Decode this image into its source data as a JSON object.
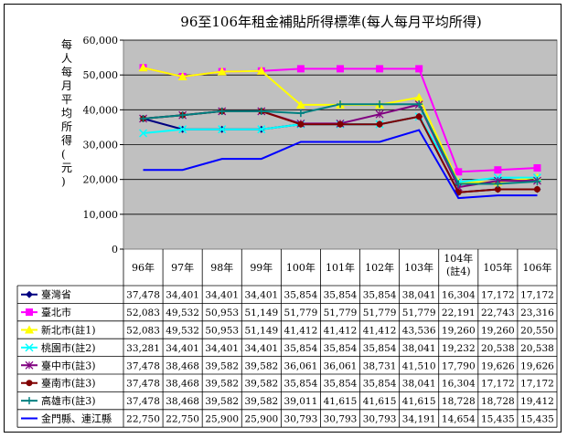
{
  "chart_data": {
    "type": "line",
    "title": "96至106年租金補貼所得標準(每人每月平均所得)",
    "ylabel": "每人每月平均所得(元)",
    "ylim": [
      0,
      60000
    ],
    "yticks": [
      "0",
      "10,000",
      "20,000",
      "30,000",
      "40,000",
      "50,000",
      "60,000"
    ],
    "grid": true,
    "legend": "table-below",
    "categories": [
      "96年",
      "97年",
      "98年",
      "99年",
      "100年",
      "101年",
      "102年",
      "103年",
      "104年(註4)",
      "105年",
      "106年"
    ],
    "category_lines": [
      [
        "96年"
      ],
      [
        "97年"
      ],
      [
        "98年"
      ],
      [
        "99年"
      ],
      [
        "100年"
      ],
      [
        "101年"
      ],
      [
        "102年"
      ],
      [
        "103年"
      ],
      [
        "104年",
        "(註4)"
      ],
      [
        "105年"
      ],
      [
        "106年"
      ]
    ],
    "series": [
      {
        "name": "臺灣省",
        "color": "#000080",
        "marker": "diamond",
        "values": [
          37478,
          34401,
          34401,
          34401,
          35854,
          35854,
          35854,
          38041,
          16304,
          17172,
          17172
        ],
        "labels": [
          "37,478",
          "34,401",
          "34,401",
          "34,401",
          "35,854",
          "35,854",
          "35,854",
          "38,041",
          "16,304",
          "17,172",
          "17,172"
        ]
      },
      {
        "name": "臺北市",
        "color": "#ff00ff",
        "marker": "square",
        "values": [
          52083,
          49532,
          50953,
          51149,
          51779,
          51779,
          51779,
          51779,
          22191,
          22743,
          23316
        ],
        "labels": [
          "52,083",
          "49,532",
          "50,953",
          "51,149",
          "51,779",
          "51,779",
          "51,779",
          "51,779",
          "22,191",
          "22,743",
          "23,316"
        ]
      },
      {
        "name": "新北市(註1)",
        "color": "#ffff00",
        "marker": "triangle",
        "values": [
          52083,
          49532,
          50953,
          51149,
          41412,
          41412,
          41412,
          43536,
          19260,
          19260,
          20550
        ],
        "labels": [
          "52,083",
          "49,532",
          "50,953",
          "51,149",
          "41,412",
          "41,412",
          "41,412",
          "43,536",
          "19,260",
          "19,260",
          "20,550"
        ]
      },
      {
        "name": "桃園市(註2)",
        "color": "#00ffff",
        "marker": "x",
        "values": [
          33281,
          34401,
          34401,
          34401,
          35854,
          35854,
          35854,
          38041,
          19232,
          20538,
          20538
        ],
        "labels": [
          "33,281",
          "34,401",
          "34,401",
          "34,401",
          "35,854",
          "35,854",
          "35,854",
          "38,041",
          "19,232",
          "20,538",
          "20,538"
        ]
      },
      {
        "name": "臺中市(註3)",
        "color": "#800080",
        "marker": "star",
        "values": [
          37478,
          38468,
          39582,
          39582,
          36061,
          36061,
          38731,
          41510,
          17790,
          19626,
          19626
        ],
        "labels": [
          "37,478",
          "38,468",
          "39,582",
          "39,582",
          "36,061",
          "36,061",
          "38,731",
          "41,510",
          "17,790",
          "19,626",
          "19,626"
        ]
      },
      {
        "name": "臺南市(註3)",
        "color": "#800000",
        "marker": "circle",
        "values": [
          37478,
          38468,
          39582,
          39582,
          35854,
          35854,
          35854,
          38041,
          16304,
          17172,
          17172
        ],
        "labels": [
          "37,478",
          "38,468",
          "39,582",
          "39,582",
          "35,854",
          "35,854",
          "35,854",
          "38,041",
          "16,304",
          "17,172",
          "17,172"
        ]
      },
      {
        "name": "高雄市(註3)",
        "color": "#008080",
        "marker": "plus",
        "values": [
          37478,
          38468,
          39582,
          39582,
          39011,
          41615,
          41615,
          41615,
          18728,
          18728,
          19412
        ],
        "labels": [
          "37,478",
          "38,468",
          "39,582",
          "39,582",
          "39,011",
          "41,615",
          "41,615",
          "41,615",
          "18,728",
          "18,728",
          "19,412"
        ]
      },
      {
        "name": "金門縣、連江縣",
        "color": "#0000ff",
        "marker": "none",
        "values": [
          22750,
          22750,
          25900,
          25900,
          30793,
          30793,
          30793,
          34191,
          14654,
          15435,
          15435
        ],
        "labels": [
          "22,750",
          "22,750",
          "25,900",
          "25,900",
          "30,793",
          "30,793",
          "30,793",
          "34,191",
          "14,654",
          "15,435",
          "15,435"
        ]
      }
    ],
    "colors": {
      "plot_background": "#c0c0c0"
    }
  }
}
